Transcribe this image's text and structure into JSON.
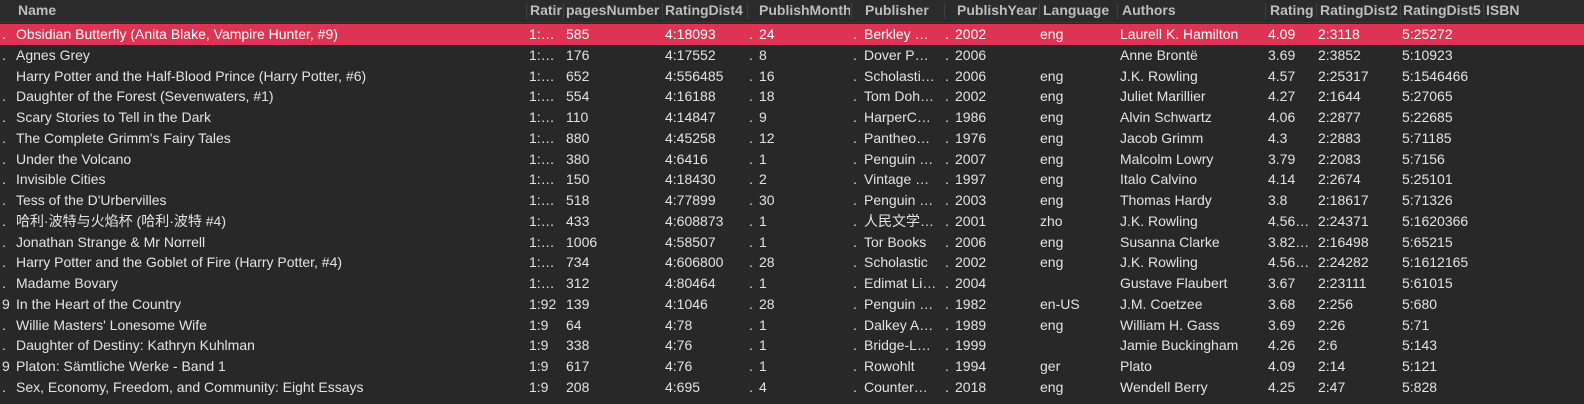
{
  "columns": {
    "lead": "",
    "name": "Name",
    "rating": "Ratir",
    "pages": "pagesNumber",
    "dist4": "RatingDist4",
    "month": "PublishMonth",
    "publisher": "Publisher",
    "year": "PublishYear",
    "language": "Language",
    "authors": "Authors",
    "rating2": "Rating",
    "dist2": "RatingDist2",
    "dist5": "RatingDist5",
    "isbn": "ISBN"
  },
  "rows": [
    {
      "lead": ".",
      "name": "Obsidian Butterfly (Anita Blake, Vampire Hunter, #9)",
      "rating": "1:…",
      "pages": "585",
      "dist4": "4:18093",
      "mlead": ".",
      "month": "24",
      "plead": ".",
      "publisher": "Berkley …",
      "ylead": ".",
      "year": "2002",
      "language": "eng",
      "authors": "Laurell K. Hamilton",
      "rating2": "4.09",
      "dist2": "2:3118",
      "dist5": "5:25272"
    },
    {
      "lead": ".",
      "name": "Agnes Grey",
      "rating": "1:…",
      "pages": "176",
      "dist4": "4:17552",
      "mlead": ".",
      "month": "8",
      "plead": ".",
      "publisher": "Dover P…",
      "ylead": ".",
      "year": "2006",
      "language": "",
      "authors": "Anne Brontë",
      "rating2": "3.69",
      "dist2": "2:3852",
      "dist5": "5:10923"
    },
    {
      "lead": "",
      "name": "Harry Potter and the Half-Blood Prince (Harry Potter, #6)",
      "rating": "1:…",
      "pages": "652",
      "dist4": "4:556485",
      "mlead": ".",
      "month": "16",
      "plead": ".",
      "publisher": "Scholasti…",
      "ylead": ".",
      "year": "2006",
      "language": "eng",
      "authors": "J.K. Rowling",
      "rating2": "4.57",
      "dist2": "2:25317",
      "dist5": "5:1546466"
    },
    {
      "lead": ".",
      "name": "Daughter of the Forest  (Sevenwaters, #1)",
      "rating": "1:…",
      "pages": "554",
      "dist4": "4:16188",
      "mlead": ".",
      "month": "18",
      "plead": ".",
      "publisher": "Tom Doh…",
      "ylead": ".",
      "year": "2002",
      "language": "eng",
      "authors": "Juliet Marillier",
      "rating2": "4.27",
      "dist2": "2:1644",
      "dist5": "5:27065"
    },
    {
      "lead": ".",
      "name": "Scary Stories to Tell in the Dark",
      "rating": "1:…",
      "pages": "110",
      "dist4": "4:14847",
      "mlead": ".",
      "month": "9",
      "plead": ".",
      "publisher": "HarperC…",
      "ylead": ".",
      "year": "1986",
      "language": "eng",
      "authors": "Alvin Schwartz",
      "rating2": "4.06",
      "dist2": "2:2877",
      "dist5": "5:22685"
    },
    {
      "lead": ".",
      "name": "The Complete Grimm's Fairy Tales",
      "rating": "1:…",
      "pages": "880",
      "dist4": "4:45258",
      "mlead": ".",
      "month": "12",
      "plead": ".",
      "publisher": "Pantheo…",
      "ylead": ".",
      "year": "1976",
      "language": "eng",
      "authors": "Jacob Grimm",
      "rating2": "4.3",
      "dist2": "2:2883",
      "dist5": "5:71185"
    },
    {
      "lead": ".",
      "name": "Under the Volcano",
      "rating": "1:…",
      "pages": "380",
      "dist4": "4:6416",
      "mlead": ".",
      "month": "1",
      "plead": ".",
      "publisher": "Penguin …",
      "ylead": ".",
      "year": "2007",
      "language": "eng",
      "authors": "Malcolm Lowry",
      "rating2": "3.79",
      "dist2": "2:2083",
      "dist5": "5:7156"
    },
    {
      "lead": ".",
      "name": "Invisible Cities",
      "rating": "1:…",
      "pages": "150",
      "dist4": "4:18430",
      "mlead": ".",
      "month": "2",
      "plead": ".",
      "publisher": "Vintage …",
      "ylead": ".",
      "year": "1997",
      "language": "eng",
      "authors": "Italo Calvino",
      "rating2": "4.14",
      "dist2": "2:2674",
      "dist5": "5:25101"
    },
    {
      "lead": ".",
      "name": "Tess of the D'Urbervilles",
      "rating": "1:…",
      "pages": "518",
      "dist4": "4:77899",
      "mlead": ".",
      "month": "30",
      "plead": ".",
      "publisher": "Penguin …",
      "ylead": ".",
      "year": "2003",
      "language": "eng",
      "authors": "Thomas Hardy",
      "rating2": "3.8",
      "dist2": "2:18617",
      "dist5": "5:71326"
    },
    {
      "lead": ".",
      "name": "哈利·波特与火焰杯 (哈利·波特 #4)",
      "rating": "1:…",
      "pages": "433",
      "dist4": "4:608873",
      "mlead": ".",
      "month": "1",
      "plead": ".",
      "publisher": "人民文学…",
      "ylead": ".",
      "year": "2001",
      "language": "zho",
      "authors": "J.K. Rowling",
      "rating2": "4.56…",
      "dist2": "2:24371",
      "dist5": "5:1620366"
    },
    {
      "lead": ".",
      "name": "Jonathan Strange & Mr Norrell",
      "rating": "1:…",
      "pages": "1006",
      "dist4": "4:58507",
      "mlead": ".",
      "month": "1",
      "plead": ".",
      "publisher": "Tor Books",
      "ylead": ".",
      "year": "2006",
      "language": "eng",
      "authors": "Susanna Clarke",
      "rating2": "3.82…",
      "dist2": "2:16498",
      "dist5": "5:65215"
    },
    {
      "lead": ".",
      "name": "Harry Potter and the Goblet of Fire (Harry Potter, #4)",
      "rating": "1:…",
      "pages": "734",
      "dist4": "4:606800",
      "mlead": ".",
      "month": "28",
      "plead": ".",
      "publisher": "Scholastic",
      "ylead": ".",
      "year": "2002",
      "language": "eng",
      "authors": "J.K. Rowling",
      "rating2": "4.56…",
      "dist2": "2:24282",
      "dist5": "5:1612165"
    },
    {
      "lead": ".",
      "name": "Madame Bovary",
      "rating": "1:…",
      "pages": "312",
      "dist4": "4:80464",
      "mlead": ".",
      "month": "1",
      "plead": ".",
      "publisher": "Edimat Li…",
      "ylead": ".",
      "year": "2004",
      "language": "",
      "authors": "Gustave Flaubert",
      "rating2": "3.67",
      "dist2": "2:23111",
      "dist5": "5:61015"
    },
    {
      "lead": "9",
      "name": "In the Heart of the Country",
      "rating": "1:92",
      "pages": "139",
      "dist4": "4:1046",
      "mlead": ".",
      "month": "28",
      "plead": ".",
      "publisher": "Penguin …",
      "ylead": ".",
      "year": "1982",
      "language": "en-US",
      "authors": "J.M. Coetzee",
      "rating2": "3.68",
      "dist2": "2:256",
      "dist5": "5:680"
    },
    {
      "lead": ".",
      "name": "Willie Masters' Lonesome Wife",
      "rating": "1:9",
      "pages": "64",
      "dist4": "4:78",
      "mlead": ".",
      "month": "1",
      "plead": ".",
      "publisher": "Dalkey A…",
      "ylead": ".",
      "year": "1989",
      "language": "eng",
      "authors": "William H. Gass",
      "rating2": "3.69",
      "dist2": "2:26",
      "dist5": "5:71"
    },
    {
      "lead": ".",
      "name": "Daughter of Destiny: Kathryn Kuhlman",
      "rating": "1:9",
      "pages": "338",
      "dist4": "4:76",
      "mlead": ".",
      "month": "1",
      "plead": ".",
      "publisher": "Bridge-L…",
      "ylead": ".",
      "year": "1999",
      "language": "",
      "authors": "Jamie Buckingham",
      "rating2": "4.26",
      "dist2": "2:6",
      "dist5": "5:143"
    },
    {
      "lead": "9",
      "name": "Platon: Sämtliche Werke - Band 1",
      "rating": "1:9",
      "pages": "617",
      "dist4": "4:76",
      "mlead": ".",
      "month": "1",
      "plead": ".",
      "publisher": "Rowohlt",
      "ylead": ".",
      "year": "1994",
      "language": "ger",
      "authors": "Plato",
      "rating2": "4.09",
      "dist2": "2:14",
      "dist5": "5:121"
    },
    {
      "lead": ".",
      "name": "Sex, Economy, Freedom, and Community: Eight Essays",
      "rating": "1:9",
      "pages": "208",
      "dist4": "4:695",
      "mlead": ".",
      "month": "4",
      "plead": ".",
      "publisher": "Counter…",
      "ylead": ".",
      "year": "2018",
      "language": "eng",
      "authors": "Wendell Berry",
      "rating2": "4.25",
      "dist2": "2:47",
      "dist5": "5:828"
    }
  ],
  "selected_row": 0,
  "colors": {
    "background": "#282828",
    "selected": "#dc3452",
    "header_text": "#bdbdbd"
  }
}
